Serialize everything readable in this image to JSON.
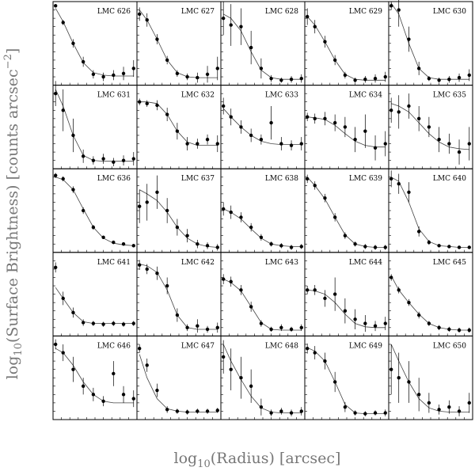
{
  "y_label": {
    "prefix": "log",
    "sub": "10",
    "main": "(Surface Brightness) [counts arcsec",
    "sup": "−2",
    "end": "]"
  },
  "x_label": {
    "prefix": "log",
    "sub": "10",
    "main": "(Radius) [arcsec]"
  },
  "chart_data": [
    {
      "type": "scatter",
      "title": "LMC 626",
      "xlim": [
        0,
        1
      ],
      "ylim": [
        0,
        1
      ],
      "x": [
        0.03,
        0.12,
        0.24,
        0.36,
        0.48,
        0.6,
        0.72,
        0.84,
        0.96
      ],
      "values": [
        0.95,
        0.75,
        0.5,
        0.28,
        0.13,
        0.1,
        0.12,
        0.14,
        0.2
      ],
      "errors": [
        0.02,
        0.03,
        0.05,
        0.06,
        0.05,
        0.05,
        0.06,
        0.08,
        0.1
      ],
      "fit": [
        0.92,
        0.76,
        0.5,
        0.27,
        0.15,
        0.12,
        0.11,
        0.11,
        0.11
      ]
    },
    {
      "type": "scatter",
      "title": "LMC 627",
      "xlim": [
        0,
        1
      ],
      "ylim": [
        0,
        1
      ],
      "x": [
        0.03,
        0.12,
        0.24,
        0.36,
        0.48,
        0.6,
        0.72,
        0.84,
        0.96
      ],
      "values": [
        0.85,
        0.78,
        0.55,
        0.3,
        0.14,
        0.1,
        0.09,
        0.13,
        0.2
      ],
      "errors": [
        0.08,
        0.08,
        0.06,
        0.05,
        0.04,
        0.04,
        0.06,
        0.1,
        0.14
      ],
      "fit": [
        0.9,
        0.78,
        0.55,
        0.3,
        0.15,
        0.1,
        0.09,
        0.09,
        0.09
      ]
    },
    {
      "type": "scatter",
      "title": "LMC 628",
      "xlim": [
        0,
        1
      ],
      "ylim": [
        0,
        1
      ],
      "x": [
        0.03,
        0.12,
        0.24,
        0.36,
        0.48,
        0.6,
        0.72,
        0.84,
        0.96
      ],
      "values": [
        0.8,
        0.72,
        0.7,
        0.45,
        0.2,
        0.08,
        0.06,
        0.07,
        0.08
      ],
      "errors": [
        0.2,
        0.25,
        0.22,
        0.2,
        0.12,
        0.04,
        0.03,
        0.04,
        0.05
      ],
      "fit": [
        0.85,
        0.8,
        0.65,
        0.4,
        0.18,
        0.09,
        0.07,
        0.07,
        0.07
      ]
    },
    {
      "type": "scatter",
      "title": "LMC 629",
      "xlim": [
        0,
        1
      ],
      "ylim": [
        0,
        1
      ],
      "x": [
        0.03,
        0.12,
        0.24,
        0.36,
        0.48,
        0.6,
        0.72,
        0.84,
        0.96
      ],
      "values": [
        0.82,
        0.7,
        0.52,
        0.3,
        0.12,
        0.06,
        0.07,
        0.08,
        0.1
      ],
      "errors": [
        0.1,
        0.08,
        0.07,
        0.06,
        0.04,
        0.03,
        0.04,
        0.05,
        0.06
      ],
      "fit": [
        0.82,
        0.72,
        0.52,
        0.3,
        0.13,
        0.07,
        0.06,
        0.06,
        0.06
      ]
    },
    {
      "type": "scatter",
      "title": "LMC 630",
      "xlim": [
        0,
        1
      ],
      "ylim": [
        0,
        1
      ],
      "x": [
        0.03,
        0.12,
        0.24,
        0.36,
        0.48,
        0.6,
        0.72,
        0.84,
        0.96
      ],
      "values": [
        0.95,
        0.9,
        0.55,
        0.2,
        0.08,
        0.06,
        0.07,
        0.09,
        0.12
      ],
      "errors": [
        0.05,
        0.2,
        0.15,
        0.08,
        0.03,
        0.03,
        0.04,
        0.05,
        0.07
      ],
      "fit": [
        0.98,
        0.85,
        0.5,
        0.2,
        0.09,
        0.07,
        0.07,
        0.07,
        0.07
      ]
    },
    {
      "type": "scatter",
      "title": "LMC 631",
      "xlim": [
        0,
        1
      ],
      "ylim": [
        0,
        1
      ],
      "x": [
        0.03,
        0.12,
        0.24,
        0.36,
        0.48,
        0.6,
        0.72,
        0.84,
        0.96
      ],
      "values": [
        0.9,
        0.7,
        0.4,
        0.15,
        0.1,
        0.12,
        0.08,
        0.1,
        0.12
      ],
      "errors": [
        0.15,
        0.25,
        0.2,
        0.08,
        0.05,
        0.06,
        0.05,
        0.06,
        0.08
      ],
      "fit": [
        0.95,
        0.75,
        0.4,
        0.16,
        0.1,
        0.09,
        0.09,
        0.09,
        0.09
      ]
    },
    {
      "type": "scatter",
      "title": "LMC 632",
      "xlim": [
        0,
        1
      ],
      "ylim": [
        0,
        1
      ],
      "x": [
        0.03,
        0.12,
        0.24,
        0.36,
        0.48,
        0.6,
        0.72,
        0.84,
        0.96
      ],
      "values": [
        0.8,
        0.78,
        0.76,
        0.65,
        0.45,
        0.3,
        0.3,
        0.35,
        0.3
      ],
      "errors": [
        0.04,
        0.04,
        0.06,
        0.08,
        0.1,
        0.08,
        0.06,
        0.06,
        0.1
      ],
      "fit": [
        0.8,
        0.8,
        0.78,
        0.65,
        0.45,
        0.32,
        0.28,
        0.28,
        0.28
      ]
    },
    {
      "type": "scatter",
      "title": "LMC 633",
      "xlim": [
        0,
        1
      ],
      "ylim": [
        0,
        1
      ],
      "x": [
        0.03,
        0.12,
        0.24,
        0.36,
        0.48,
        0.6,
        0.72,
        0.84,
        0.96
      ],
      "values": [
        0.75,
        0.62,
        0.5,
        0.4,
        0.35,
        0.55,
        0.3,
        0.28,
        0.3
      ],
      "errors": [
        0.1,
        0.1,
        0.08,
        0.08,
        0.06,
        0.2,
        0.08,
        0.06,
        0.08
      ],
      "fit": [
        0.72,
        0.62,
        0.5,
        0.4,
        0.33,
        0.3,
        0.29,
        0.29,
        0.29
      ]
    },
    {
      "type": "scatter",
      "title": "LMC 634",
      "xlim": [
        0,
        1
      ],
      "ylim": [
        0,
        1
      ],
      "x": [
        0.03,
        0.12,
        0.24,
        0.36,
        0.48,
        0.6,
        0.72,
        0.84,
        0.96
      ],
      "values": [
        0.62,
        0.6,
        0.6,
        0.55,
        0.5,
        0.35,
        0.45,
        0.25,
        0.3
      ],
      "errors": [
        0.05,
        0.06,
        0.08,
        0.1,
        0.12,
        0.15,
        0.2,
        0.15,
        0.15
      ],
      "fit": [
        0.62,
        0.61,
        0.59,
        0.52,
        0.42,
        0.33,
        0.28,
        0.26,
        0.26
      ]
    },
    {
      "type": "scatter",
      "title": "LMC 635",
      "xlim": [
        0,
        1
      ],
      "ylim": [
        0,
        1
      ],
      "x": [
        0.03,
        0.12,
        0.24,
        0.36,
        0.48,
        0.6,
        0.72,
        0.84,
        0.96
      ],
      "values": [
        0.7,
        0.68,
        0.75,
        0.6,
        0.5,
        0.35,
        0.3,
        0.2,
        0.3
      ],
      "errors": [
        0.15,
        0.2,
        0.15,
        0.15,
        0.12,
        0.15,
        0.12,
        0.15,
        0.2
      ],
      "fit": [
        0.78,
        0.75,
        0.68,
        0.55,
        0.42,
        0.32,
        0.26,
        0.24,
        0.23
      ]
    },
    {
      "type": "scatter",
      "title": "LMC 636",
      "xlim": [
        0,
        1
      ],
      "ylim": [
        0,
        1
      ],
      "x": [
        0.03,
        0.12,
        0.24,
        0.36,
        0.48,
        0.6,
        0.72,
        0.84,
        0.96
      ],
      "values": [
        0.92,
        0.88,
        0.75,
        0.5,
        0.3,
        0.18,
        0.12,
        0.1,
        0.08
      ],
      "errors": [
        0.03,
        0.03,
        0.04,
        0.04,
        0.03,
        0.02,
        0.02,
        0.02,
        0.02
      ],
      "fit": [
        0.9,
        0.87,
        0.75,
        0.52,
        0.3,
        0.17,
        0.11,
        0.09,
        0.08
      ]
    },
    {
      "type": "scatter",
      "title": "LMC 637",
      "xlim": [
        0,
        1
      ],
      "ylim": [
        0,
        1
      ],
      "x": [
        0.03,
        0.12,
        0.24,
        0.36,
        0.48,
        0.6,
        0.72,
        0.84,
        0.96
      ],
      "values": [
        0.55,
        0.6,
        0.72,
        0.5,
        0.3,
        0.2,
        0.1,
        0.08,
        0.06
      ],
      "errors": [
        0.2,
        0.22,
        0.2,
        0.15,
        0.1,
        0.08,
        0.05,
        0.04,
        0.04
      ],
      "fit": [
        0.75,
        0.7,
        0.62,
        0.48,
        0.3,
        0.17,
        0.1,
        0.07,
        0.06
      ]
    },
    {
      "type": "scatter",
      "title": "LMC 638",
      "xlim": [
        0,
        1
      ],
      "ylim": [
        0,
        1
      ],
      "x": [
        0.03,
        0.12,
        0.24,
        0.36,
        0.48,
        0.6,
        0.72,
        0.84,
        0.96
      ],
      "values": [
        0.52,
        0.48,
        0.42,
        0.3,
        0.18,
        0.1,
        0.08,
        0.06,
        0.07
      ],
      "errors": [
        0.08,
        0.08,
        0.06,
        0.05,
        0.04,
        0.03,
        0.03,
        0.03,
        0.03
      ],
      "fit": [
        0.52,
        0.48,
        0.4,
        0.28,
        0.17,
        0.1,
        0.08,
        0.07,
        0.07
      ]
    },
    {
      "type": "scatter",
      "title": "LMC 639",
      "xlim": [
        0,
        1
      ],
      "ylim": [
        0,
        1
      ],
      "x": [
        0.03,
        0.12,
        0.24,
        0.36,
        0.48,
        0.6,
        0.72,
        0.84,
        0.96
      ],
      "values": [
        0.88,
        0.8,
        0.65,
        0.42,
        0.2,
        0.1,
        0.07,
        0.06,
        0.06
      ],
      "errors": [
        0.05,
        0.05,
        0.05,
        0.05,
        0.04,
        0.03,
        0.03,
        0.03,
        0.03
      ],
      "fit": [
        0.9,
        0.8,
        0.64,
        0.42,
        0.21,
        0.1,
        0.07,
        0.06,
        0.06
      ]
    },
    {
      "type": "scatter",
      "title": "LMC 640",
      "xlim": [
        0,
        1
      ],
      "ylim": [
        0,
        1
      ],
      "x": [
        0.03,
        0.12,
        0.24,
        0.36,
        0.48,
        0.6,
        0.72,
        0.84,
        0.96
      ],
      "values": [
        0.88,
        0.82,
        0.72,
        0.25,
        0.12,
        0.08,
        0.07,
        0.06,
        0.06
      ],
      "errors": [
        0.1,
        0.12,
        0.12,
        0.06,
        0.03,
        0.02,
        0.02,
        0.02,
        0.02
      ],
      "fit": [
        0.9,
        0.85,
        0.6,
        0.28,
        0.13,
        0.08,
        0.07,
        0.06,
        0.06
      ]
    },
    {
      "type": "scatter",
      "title": "LMC 641",
      "xlim": [
        0,
        1
      ],
      "ylim": [
        0,
        1
      ],
      "x": [
        0.03,
        0.12,
        0.24,
        0.36,
        0.48,
        0.6,
        0.72,
        0.84,
        0.96
      ],
      "values": [
        0.82,
        0.45,
        0.28,
        0.16,
        0.15,
        0.14,
        0.15,
        0.14,
        0.15
      ],
      "errors": [
        0.06,
        0.08,
        0.06,
        0.04,
        0.03,
        0.03,
        0.03,
        0.03,
        0.03
      ],
      "fit": [
        0.58,
        0.45,
        0.28,
        0.17,
        0.15,
        0.15,
        0.15,
        0.15,
        0.15
      ]
    },
    {
      "type": "scatter",
      "title": "LMC 642",
      "xlim": [
        0,
        1
      ],
      "ylim": [
        0,
        1
      ],
      "x": [
        0.03,
        0.12,
        0.24,
        0.36,
        0.48,
        0.6,
        0.72,
        0.84,
        0.96
      ],
      "values": [
        0.85,
        0.8,
        0.75,
        0.6,
        0.25,
        0.1,
        0.12,
        0.08,
        0.1
      ],
      "errors": [
        0.06,
        0.06,
        0.08,
        0.1,
        0.08,
        0.04,
        0.08,
        0.04,
        0.06
      ],
      "fit": [
        0.86,
        0.84,
        0.76,
        0.55,
        0.25,
        0.1,
        0.08,
        0.08,
        0.08
      ]
    },
    {
      "type": "scatter",
      "title": "LMC 643",
      "xlim": [
        0,
        1
      ],
      "ylim": [
        0,
        1
      ],
      "x": [
        0.03,
        0.12,
        0.24,
        0.36,
        0.48,
        0.6,
        0.72,
        0.84,
        0.96
      ],
      "values": [
        0.68,
        0.65,
        0.55,
        0.35,
        0.15,
        0.08,
        0.1,
        0.08,
        0.1
      ],
      "errors": [
        0.06,
        0.06,
        0.06,
        0.06,
        0.04,
        0.03,
        0.04,
        0.03,
        0.04
      ],
      "fit": [
        0.68,
        0.64,
        0.54,
        0.35,
        0.16,
        0.08,
        0.07,
        0.07,
        0.07
      ]
    },
    {
      "type": "scatter",
      "title": "LMC 644",
      "xlim": [
        0,
        1
      ],
      "ylim": [
        0,
        1
      ],
      "x": [
        0.03,
        0.12,
        0.24,
        0.36,
        0.48,
        0.6,
        0.72,
        0.84,
        0.96
      ],
      "values": [
        0.55,
        0.55,
        0.45,
        0.5,
        0.3,
        0.2,
        0.15,
        0.12,
        0.15
      ],
      "errors": [
        0.05,
        0.06,
        0.1,
        0.2,
        0.15,
        0.12,
        0.1,
        0.06,
        0.08
      ],
      "fit": [
        0.55,
        0.54,
        0.5,
        0.4,
        0.26,
        0.15,
        0.11,
        0.1,
        0.1
      ]
    },
    {
      "type": "scatter",
      "title": "LMC 645",
      "xlim": [
        0,
        1
      ],
      "ylim": [
        0,
        1
      ],
      "x": [
        0.03,
        0.12,
        0.24,
        0.36,
        0.48,
        0.6,
        0.72,
        0.84,
        0.96
      ],
      "values": [
        0.7,
        0.55,
        0.4,
        0.25,
        0.15,
        0.1,
        0.08,
        0.07,
        0.07
      ],
      "errors": [
        0.04,
        0.04,
        0.04,
        0.04,
        0.03,
        0.03,
        0.03,
        0.03,
        0.03
      ],
      "fit": [
        0.72,
        0.55,
        0.4,
        0.26,
        0.15,
        0.1,
        0.08,
        0.07,
        0.07
      ]
    },
    {
      "type": "scatter",
      "title": "LMC 646",
      "xlim": [
        0,
        1
      ],
      "ylim": [
        0,
        1
      ],
      "x": [
        0.03,
        0.12,
        0.24,
        0.36,
        0.48,
        0.6,
        0.72,
        0.84,
        0.96
      ],
      "values": [
        0.9,
        0.8,
        0.6,
        0.4,
        0.3,
        0.22,
        0.55,
        0.3,
        0.25
      ],
      "errors": [
        0.06,
        0.1,
        0.15,
        0.1,
        0.08,
        0.06,
        0.15,
        0.1,
        0.1
      ],
      "fit": [
        0.85,
        0.8,
        0.65,
        0.45,
        0.3,
        0.22,
        0.2,
        0.2,
        0.2
      ]
    },
    {
      "type": "scatter",
      "title": "LMC 647",
      "xlim": [
        0,
        1
      ],
      "ylim": [
        0,
        1
      ],
      "x": [
        0.03,
        0.12,
        0.24,
        0.36,
        0.48,
        0.6,
        0.72,
        0.84,
        0.96
      ],
      "values": [
        0.85,
        0.65,
        0.35,
        0.12,
        0.1,
        0.09,
        0.1,
        0.1,
        0.11
      ],
      "errors": [
        0.05,
        0.08,
        0.08,
        0.04,
        0.03,
        0.03,
        0.03,
        0.03,
        0.03
      ],
      "fit": [
        0.78,
        0.5,
        0.25,
        0.13,
        0.1,
        0.09,
        0.09,
        0.09,
        0.09
      ]
    },
    {
      "type": "scatter",
      "title": "LMC 648",
      "xlim": [
        0,
        1
      ],
      "ylim": [
        0,
        1
      ],
      "x": [
        0.03,
        0.12,
        0.24,
        0.36,
        0.48,
        0.6,
        0.72,
        0.84,
        0.96
      ],
      "values": [
        0.75,
        0.6,
        0.5,
        0.4,
        0.15,
        0.08,
        0.1,
        0.08,
        0.1
      ],
      "errors": [
        0.2,
        0.25,
        0.25,
        0.2,
        0.1,
        0.04,
        0.04,
        0.04,
        0.05
      ],
      "fit": [
        0.9,
        0.7,
        0.48,
        0.28,
        0.14,
        0.09,
        0.08,
        0.08,
        0.08
      ]
    },
    {
      "type": "scatter",
      "title": "LMC 649",
      "xlim": [
        0,
        1
      ],
      "ylim": [
        0,
        1
      ],
      "x": [
        0.03,
        0.12,
        0.24,
        0.36,
        0.48,
        0.6,
        0.72,
        0.84,
        0.96
      ],
      "values": [
        0.85,
        0.8,
        0.7,
        0.45,
        0.15,
        0.08,
        0.07,
        0.08,
        0.08
      ],
      "errors": [
        0.06,
        0.08,
        0.1,
        0.12,
        0.06,
        0.03,
        0.03,
        0.03,
        0.04
      ],
      "fit": [
        0.86,
        0.82,
        0.7,
        0.45,
        0.18,
        0.08,
        0.07,
        0.07,
        0.07
      ]
    },
    {
      "type": "scatter",
      "title": "LMC 650",
      "xlim": [
        0,
        1
      ],
      "ylim": [
        0,
        1
      ],
      "x": [
        0.03,
        0.12,
        0.24,
        0.36,
        0.48,
        0.6,
        0.72,
        0.84,
        0.96
      ],
      "values": [
        0.6,
        0.5,
        0.45,
        0.3,
        0.2,
        0.12,
        0.15,
        0.1,
        0.2
      ],
      "errors": [
        0.3,
        0.3,
        0.25,
        0.2,
        0.12,
        0.06,
        0.08,
        0.06,
        0.12
      ],
      "fit": [
        0.9,
        0.7,
        0.45,
        0.25,
        0.14,
        0.1,
        0.09,
        0.09,
        0.09
      ]
    }
  ]
}
